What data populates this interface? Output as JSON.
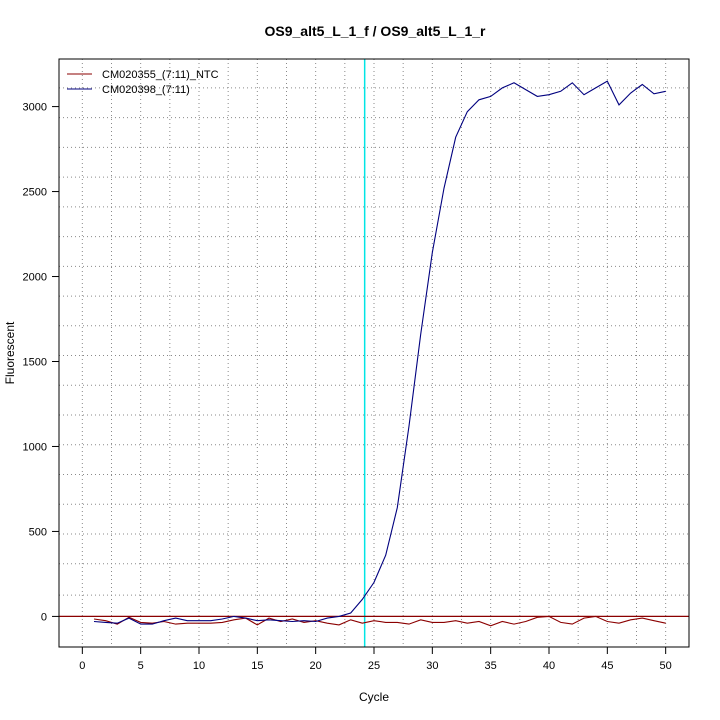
{
  "chart_data": {
    "type": "line",
    "title": "OS9_alt5_L_1_f / OS9_alt5_L_1_r",
    "xlabel": "Cycle",
    "ylabel": "Fluorescent",
    "xlim": [
      -2,
      52
    ],
    "ylim": [
      -180,
      3280
    ],
    "x_ticks": [
      0,
      5,
      10,
      15,
      20,
      25,
      30,
      35,
      40,
      45,
      50
    ],
    "y_ticks": [
      0,
      500,
      1000,
      1500,
      2000,
      2500,
      3000
    ],
    "x_grid": [
      2.5,
      7.5,
      12.5,
      17.5,
      22.5,
      27.5,
      32.5,
      37.5,
      42.5,
      47.5
    ],
    "y_grid": [
      125,
      310,
      485,
      660,
      835,
      1010,
      1185,
      1360,
      1535,
      1710,
      1885,
      2060,
      2235,
      2410,
      2585,
      2760,
      2935,
      3110
    ],
    "grid": true,
    "legend_position": "top-left",
    "threshold_x": 24.2,
    "baseline_y": 0,
    "threshold_color": "#00e5e5",
    "baseline_color": "#8b0000",
    "series": [
      {
        "name": "CM020355_(7:11)_NTC",
        "color": "#8b0000",
        "x": [
          1,
          2,
          3,
          4,
          5,
          6,
          7,
          8,
          9,
          10,
          11,
          12,
          13,
          14,
          15,
          16,
          17,
          18,
          19,
          20,
          21,
          22,
          23,
          24,
          25,
          26,
          27,
          28,
          29,
          30,
          31,
          32,
          33,
          34,
          35,
          36,
          37,
          38,
          39,
          40,
          41,
          42,
          43,
          44,
          45,
          46,
          47,
          48,
          49,
          50
        ],
        "values": [
          -15,
          -25,
          -45,
          -5,
          -35,
          -40,
          -30,
          -45,
          -40,
          -40,
          -40,
          -35,
          -20,
          -10,
          -50,
          -10,
          -30,
          -15,
          -35,
          -25,
          -40,
          -50,
          -20,
          -40,
          -25,
          -35,
          -35,
          -45,
          -20,
          -35,
          -35,
          -25,
          -40,
          -30,
          -55,
          -30,
          -45,
          -30,
          -5,
          0,
          -35,
          -45,
          -10,
          0,
          -30,
          -40,
          -20,
          -10,
          -25,
          -40
        ]
      },
      {
        "name": "CM020398_(7:11)",
        "color": "#00007f",
        "x": [
          1,
          2,
          3,
          4,
          5,
          6,
          7,
          8,
          9,
          10,
          11,
          12,
          13,
          14,
          15,
          16,
          17,
          18,
          19,
          20,
          21,
          22,
          23,
          24,
          25,
          26,
          27,
          28,
          29,
          30,
          31,
          32,
          33,
          34,
          35,
          36,
          37,
          38,
          39,
          40,
          41,
          42,
          43,
          44,
          45,
          46,
          47,
          48,
          49,
          50
        ],
        "values": [
          -30,
          -35,
          -40,
          -10,
          -45,
          -45,
          -25,
          -10,
          -25,
          -25,
          -25,
          -15,
          0,
          -10,
          -25,
          -20,
          -25,
          -30,
          -25,
          -30,
          -10,
          0,
          20,
          100,
          200,
          360,
          640,
          1120,
          1660,
          2140,
          2520,
          2820,
          2970,
          3040,
          3060,
          3110,
          3140,
          3100,
          3060,
          3070,
          3090,
          3140,
          3070,
          3110,
          3150,
          3010,
          3080,
          3130,
          3075,
          3090
        ]
      }
    ]
  }
}
